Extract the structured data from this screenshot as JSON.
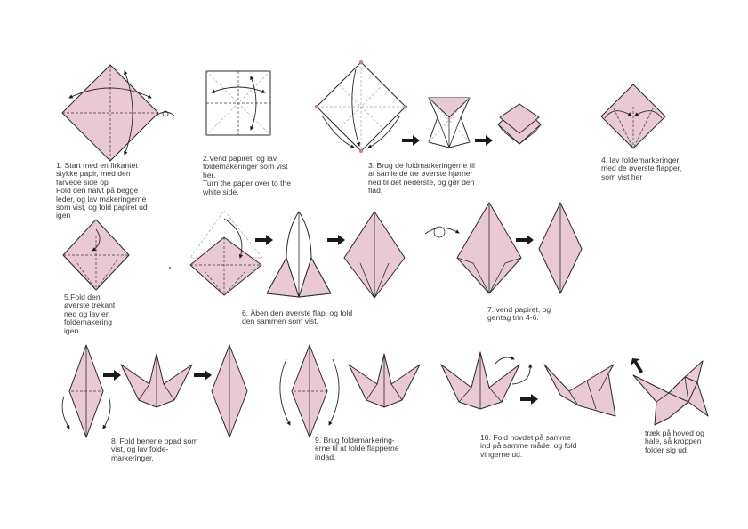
{
  "steps": {
    "s1": "1. Start med en firkantet\nstykke papir, med den\nfarvede side op\nFold den halvt på begge\nleder, og lav makeringerne\nsom vist, og fold papiret ud\nigen",
    "s2": "2.Vend papiret, og lav\nfoldemakeringer  som vist\nher.\nTurn the paper over to the\nwhite side.",
    "s3": "3.  Brug de foldmarkeringerne til\nat samle de tre øverste hjørner\nned til det nederste, og gør den\nflad.",
    "s4": "4. lav foldemarkeringer\nmed de øverste flapper,\nsom vist her",
    "s5": "5.Fold den\nøverste trekant\nned og lav en\nfoldemakering\nigen.",
    "s6": "6. Åben den øverste  flap, og fold\nden sammen som vist.",
    "s7": "7.  vend papiret, og\ngentag trin 4-6.",
    "s8": "8. Fold benene opad som\nvist, og lav folde-\nmarkeringer.",
    "s9": "9. Brug foldemarkering-\nerne til at folde flapperne\nindad.",
    "s10": "10. Fold hovdet på samme\nind på samme måde, og fold\nvingerne ud.",
    "s11": "træk på hoved og\nhale, så kroppen\nfolder sig ud."
  },
  "colors": {
    "paper": "#e8c9d4",
    "outline": "#2a2a2a",
    "accent": "#c77b95",
    "text": "#3a3a3a"
  }
}
